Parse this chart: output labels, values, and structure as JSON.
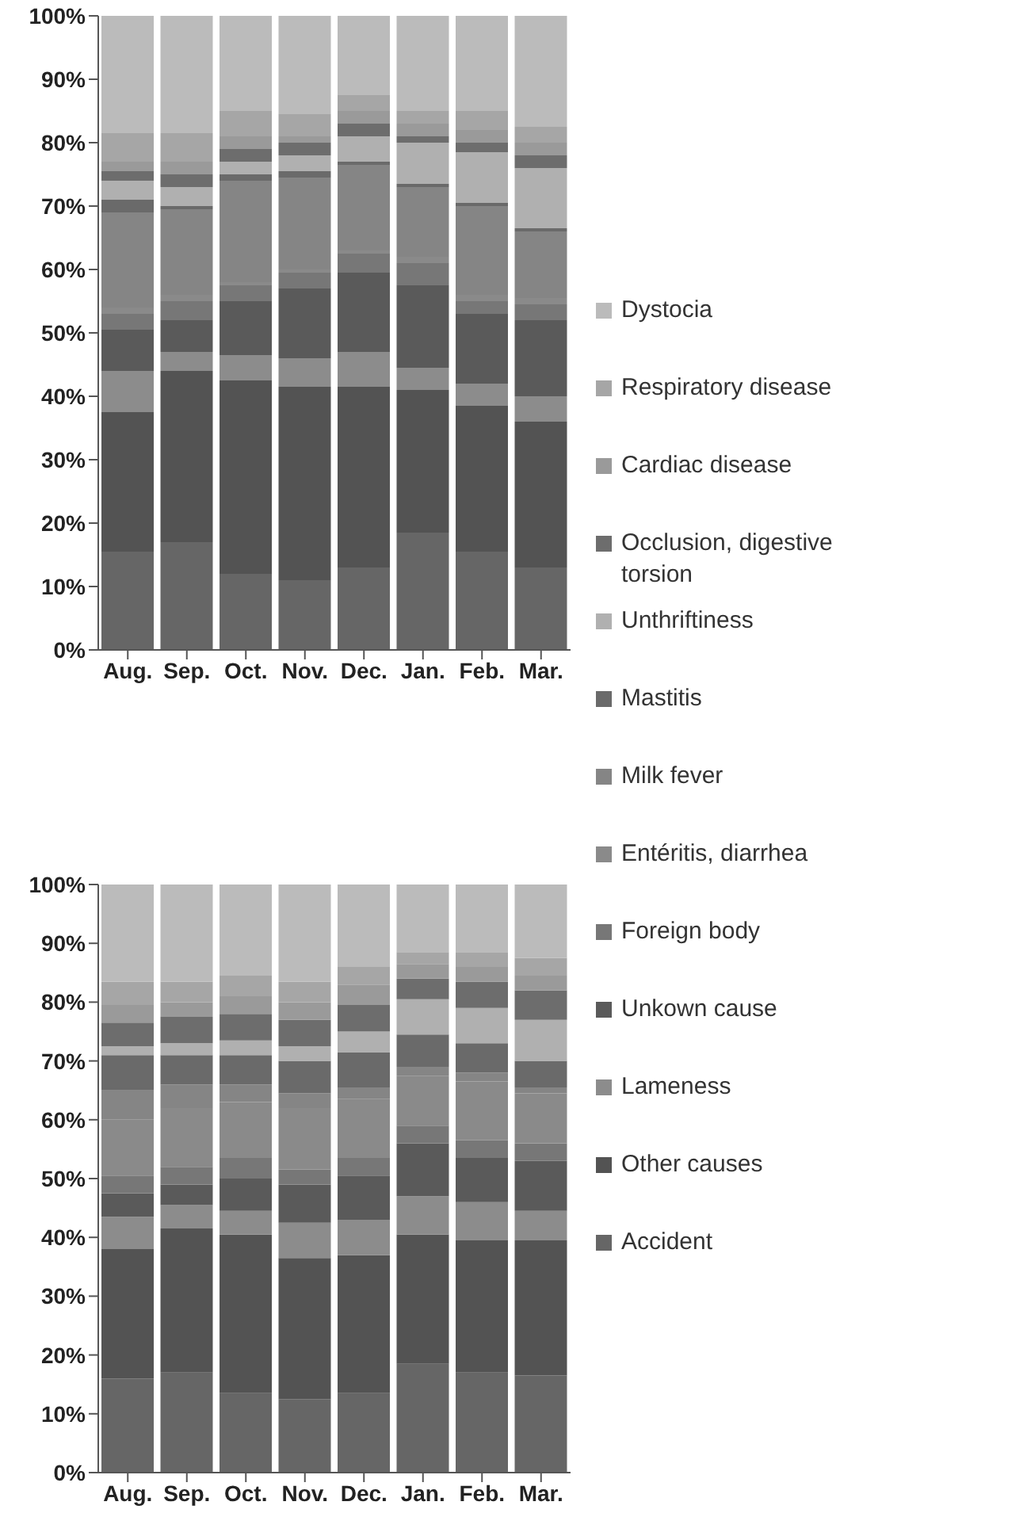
{
  "chart_data": [
    {
      "type": "bar",
      "stacked": true,
      "categories": [
        "Aug.",
        "Sep.",
        "Oct.",
        "Nov.",
        "Dec.",
        "Jan.",
        "Feb.",
        "Mar."
      ],
      "ylim": [
        0,
        100
      ],
      "yticks": [
        {
          "value": 0,
          "label": "0%"
        },
        {
          "value": 10,
          "label": "10%"
        },
        {
          "value": 20,
          "label": "20%"
        },
        {
          "value": 30,
          "label": "30%"
        },
        {
          "value": 40,
          "label": "40%"
        },
        {
          "value": 50,
          "label": "50%"
        },
        {
          "value": 60,
          "label": "60%"
        },
        {
          "value": 70,
          "label": "70%"
        },
        {
          "value": 80,
          "label": "80%"
        },
        {
          "value": 90,
          "label": "90%"
        },
        {
          "value": 100,
          "label": "100%"
        }
      ],
      "legend": "right",
      "series": [
        {
          "name": "Accident",
          "color": "#666666",
          "values": [
            15.5,
            17,
            12,
            11,
            13,
            18.5,
            15.5,
            13
          ]
        },
        {
          "name": "Other causes",
          "color": "#535353",
          "values": [
            22,
            27,
            30.5,
            30.5,
            28.5,
            22.5,
            23,
            23
          ]
        },
        {
          "name": "Lameness",
          "color": "#8c8c8c",
          "values": [
            6.5,
            3,
            4,
            4.5,
            5.5,
            3.5,
            3.5,
            4
          ]
        },
        {
          "name": "Unkown cause",
          "color": "#5a5a5a",
          "values": [
            6.5,
            5,
            8.5,
            11,
            12.5,
            13,
            11,
            12
          ]
        },
        {
          "name": "Foreign body",
          "color": "#777777",
          "values": [
            2.5,
            3,
            2.5,
            2.5,
            3,
            3.5,
            2,
            2.5
          ]
        },
        {
          "name": "Entéritis, diarrhea",
          "color": "#8a8a8a",
          "values": [
            1,
            1,
            0.5,
            0.5,
            0.5,
            1,
            1,
            1
          ]
        },
        {
          "name": "Milk fever",
          "color": "#858585",
          "values": [
            15,
            13.5,
            16,
            14.5,
            13.5,
            11,
            14,
            10.5
          ]
        },
        {
          "name": "Mastitis",
          "color": "#6a6a6a",
          "values": [
            2,
            0.5,
            1,
            1,
            0.5,
            0.5,
            0.5,
            0.5
          ]
        },
        {
          "name": "Unthriftiness",
          "color": "#b0b0b0",
          "values": [
            3,
            3,
            2,
            2.5,
            4,
            6.5,
            8,
            9.5
          ]
        },
        {
          "name": "Occlusion, digestive torsion",
          "color": "#6d6d6d",
          "values": [
            1.5,
            2,
            2,
            2,
            2,
            1,
            1.5,
            2
          ]
        },
        {
          "name": "Cardiac disease",
          "color": "#9a9a9a",
          "values": [
            1.5,
            2,
            2,
            1,
            2,
            2,
            2,
            2
          ]
        },
        {
          "name": "Respiratory disease",
          "color": "#a6a6a6",
          "values": [
            4.5,
            4.5,
            4,
            3.5,
            2.5,
            2,
            3,
            2.5
          ]
        },
        {
          "name": "Dystocia",
          "color": "#bbbbbb",
          "values": [
            18.5,
            18.5,
            15,
            15.5,
            12.5,
            15,
            15,
            17.5
          ]
        }
      ]
    },
    {
      "type": "bar",
      "stacked": true,
      "categories": [
        "Aug.",
        "Sep.",
        "Oct.",
        "Nov.",
        "Dec.",
        "Jan.",
        "Feb.",
        "Mar."
      ],
      "ylim": [
        0,
        100
      ],
      "yticks": [
        {
          "value": 0,
          "label": "0%"
        },
        {
          "value": 10,
          "label": "10%"
        },
        {
          "value": 20,
          "label": "20%"
        },
        {
          "value": 30,
          "label": "30%"
        },
        {
          "value": 40,
          "label": "40%"
        },
        {
          "value": 50,
          "label": "50%"
        },
        {
          "value": 60,
          "label": "60%"
        },
        {
          "value": 70,
          "label": "70%"
        },
        {
          "value": 80,
          "label": "80%"
        },
        {
          "value": 90,
          "label": "90%"
        },
        {
          "value": 100,
          "label": "100%"
        }
      ],
      "legend": "right",
      "series": [
        {
          "name": "Accident",
          "color": "#666666",
          "values": [
            16,
            17,
            13.5,
            12.5,
            13.5,
            18.5,
            17,
            16.5
          ]
        },
        {
          "name": "Other causes",
          "color": "#535353",
          "values": [
            22,
            24.5,
            27,
            24,
            23.5,
            22,
            22.5,
            23
          ]
        },
        {
          "name": "Lameness",
          "color": "#8c8c8c",
          "values": [
            5.5,
            4,
            4,
            6,
            6,
            6.5,
            6.5,
            5
          ]
        },
        {
          "name": "Unkown cause",
          "color": "#5a5a5a",
          "values": [
            4,
            3.5,
            5.5,
            6.5,
            7.5,
            9,
            7.5,
            8.5
          ]
        },
        {
          "name": "Foreign body",
          "color": "#777777",
          "values": [
            3,
            3,
            3.5,
            2.5,
            3,
            3,
            3,
            3
          ]
        },
        {
          "name": "Entéritis, diarrhea",
          "color": "#8a8a8a",
          "values": [
            9.5,
            10,
            9.5,
            10.5,
            10,
            8.5,
            10,
            8.5
          ]
        },
        {
          "name": "Milk fever",
          "color": "#858585",
          "values": [
            5,
            4,
            3,
            2.5,
            2,
            1.5,
            1.5,
            1
          ]
        },
        {
          "name": "Mastitis",
          "color": "#6a6a6a",
          "values": [
            6,
            5,
            5,
            5.5,
            6,
            5.5,
            5,
            4.5
          ]
        },
        {
          "name": "Unthriftiness",
          "color": "#b0b0b0",
          "values": [
            1.5,
            2,
            2.5,
            2.5,
            3.5,
            6,
            6,
            7
          ]
        },
        {
          "name": "Occlusion, digestive torsion",
          "color": "#6d6d6d",
          "values": [
            4,
            4.5,
            4.5,
            4.5,
            4.5,
            3.5,
            4.5,
            5
          ]
        },
        {
          "name": "Cardiac disease",
          "color": "#9a9a9a",
          "values": [
            3,
            2.5,
            3,
            3,
            3.5,
            2.5,
            2.5,
            2.5
          ]
        },
        {
          "name": "Respiratory disease",
          "color": "#a6a6a6",
          "values": [
            4,
            3.5,
            3.5,
            3.5,
            3,
            2,
            2.5,
            3
          ]
        },
        {
          "name": "Dystocia",
          "color": "#bbbbbb",
          "values": [
            16.5,
            16.5,
            15.5,
            16.5,
            14,
            11.5,
            11.5,
            12.5
          ]
        }
      ]
    }
  ]
}
